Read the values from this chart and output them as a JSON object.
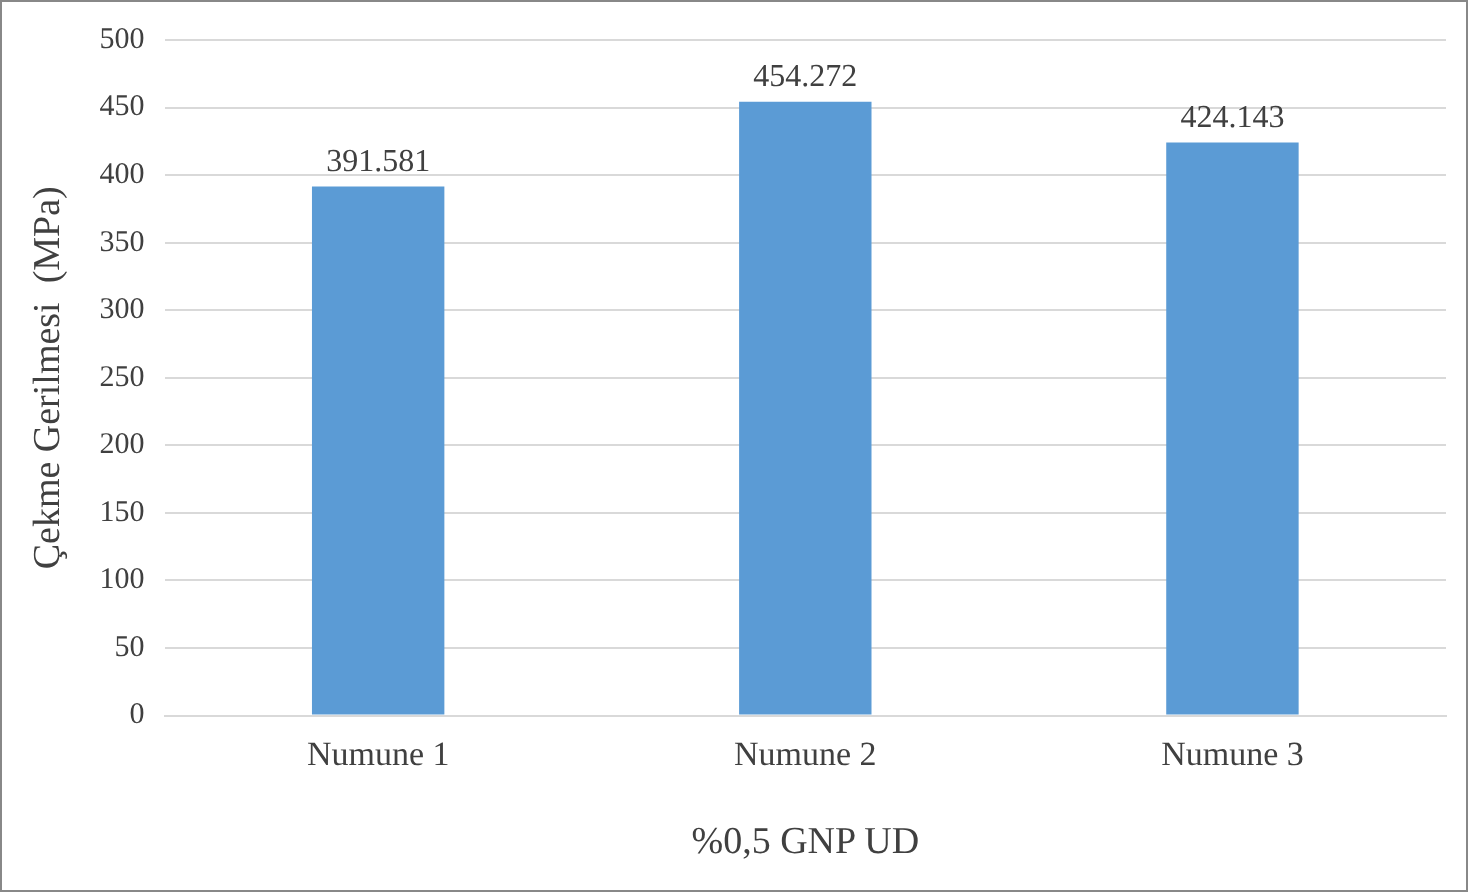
{
  "chart_data": {
    "type": "bar",
    "xlabel": "%0,5 GNP UD",
    "ylabel": "Çekme Gerilmesi  (MPa)",
    "categories": [
      "Numune 1",
      "Numune 2",
      "Numune 3"
    ],
    "values": [
      391.581,
      454.272,
      424.143
    ],
    "color": "#5b9bd5",
    "ylim": [
      0,
      500
    ],
    "yticks": [
      0,
      50,
      100,
      150,
      200,
      250,
      300,
      350,
      400,
      450,
      500
    ],
    "grid": "y",
    "data_labels": true
  }
}
